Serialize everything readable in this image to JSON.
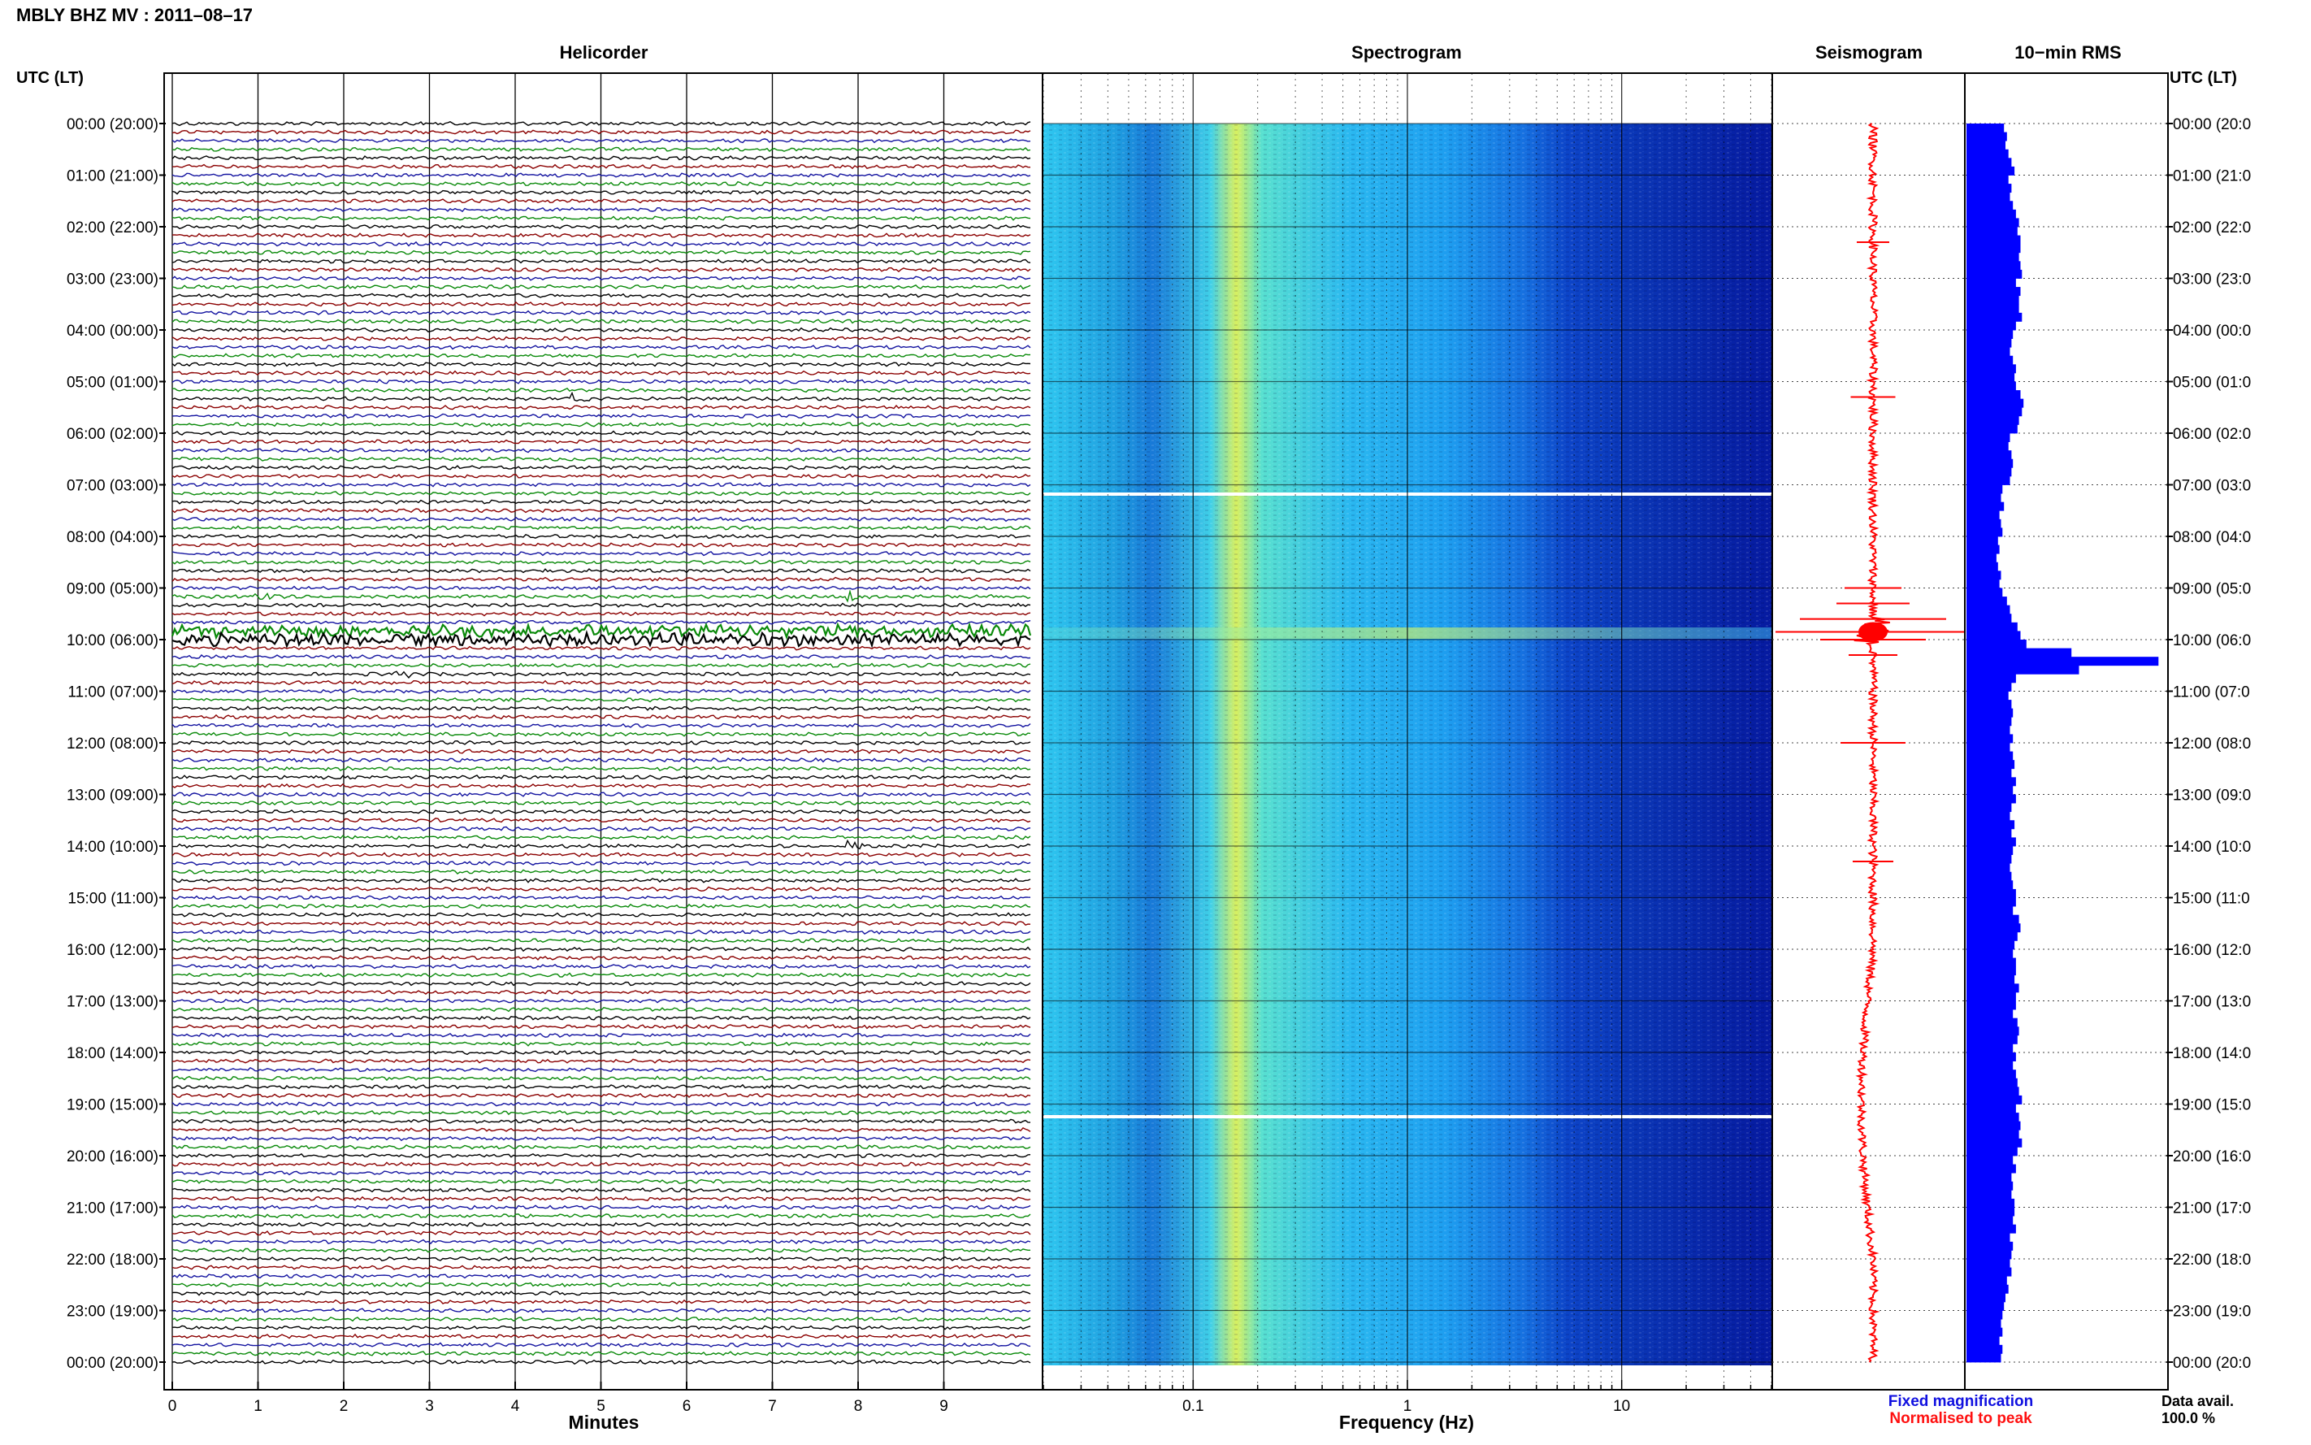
{
  "title": "MBLY BHZ MV : 2011–08–17",
  "left_axis_header": "UTC (LT)",
  "right_axis_header": "UTC (LT)",
  "panels": {
    "helicorder": "Helicorder",
    "spectrogram": "Spectrogram",
    "seismogram": "Seismogram",
    "rms": "10−min RMS"
  },
  "time_labels": [
    "00:00 (20:00)",
    "01:00 (21:00)",
    "02:00 (22:00)",
    "03:00 (23:00)",
    "04:00 (00:00)",
    "05:00 (01:00)",
    "06:00 (02:00)",
    "07:00 (03:00)",
    "08:00 (04:00)",
    "09:00 (05:00)",
    "10:00 (06:00)",
    "11:00 (07:00)",
    "12:00 (08:00)",
    "13:00 (09:00)",
    "14:00 (10:00)",
    "15:00 (11:00)",
    "16:00 (12:00)",
    "17:00 (13:00)",
    "18:00 (14:00)",
    "19:00 (15:00)",
    "20:00 (16:00)",
    "21:00 (17:00)",
    "22:00 (18:00)",
    "23:00 (19:00)",
    "00:00 (20:00)"
  ],
  "right_time_labels": [
    "00:00 (20:0",
    "01:00 (21:0",
    "02:00 (22:0",
    "03:00 (23:0",
    "04:00 (00:0",
    "05:00 (01:0",
    "06:00 (02:0",
    "07:00 (03:0",
    "08:00 (04:0",
    "09:00 (05:0",
    "10:00 (06:0",
    "11:00 (07:0",
    "12:00 (08:0",
    "13:00 (09:0",
    "14:00 (10:0",
    "15:00 (11:0",
    "16:00 (12:0",
    "17:00 (13:0",
    "18:00 (14:0",
    "19:00 (15:0",
    "20:00 (16:0",
    "21:00 (17:0",
    "22:00 (18:0",
    "23:00 (19:0",
    "00:00 (20:0"
  ],
  "helicorder_xlabel": "Minutes",
  "helicorder_ticks": [
    "0",
    "1",
    "2",
    "3",
    "4",
    "5",
    "6",
    "7",
    "8",
    "9"
  ],
  "spectrogram_xlabel": "Frequency (Hz)",
  "spectrogram_ticks": [
    "0.1",
    "1",
    "10"
  ],
  "legend": {
    "fixed": "Fixed magnification",
    "normalised": "Normalised to peak",
    "fixed_color": "#1010e0",
    "normalised_color": "#ff1010"
  },
  "data_avail_label": "Data avail.",
  "data_avail_value": "100.0 %",
  "colors": {
    "trace_cycle": [
      "#000000",
      "#8b0000",
      "#1414a0",
      "#0a8a0a"
    ],
    "seismogram": "#ff0000",
    "rms_bar": "#0000ff"
  },
  "chart_data": [
    {
      "type": "line",
      "name": "Helicorder",
      "xlabel": "Minutes",
      "xlim": [
        0,
        10
      ],
      "rows_per_hour": 6,
      "hours": 24,
      "notable_events": [
        {
          "time": "05:20",
          "minute": 4.7
        },
        {
          "time": "09:10",
          "minute": 1.0
        },
        {
          "time": "09:10",
          "minute": 7.9
        },
        {
          "time": "09:50",
          "minute": 0.0,
          "note": "large event, saturating"
        },
        {
          "time": "10:40",
          "minute": 2.6
        },
        {
          "time": "14:00",
          "minute": 7.9
        }
      ]
    },
    {
      "type": "heatmap",
      "name": "Spectrogram",
      "xlabel": "Frequency (Hz)",
      "xscale": "log",
      "xlim": [
        0.02,
        50
      ],
      "y": "time of day (UTC)",
      "features": [
        {
          "frequency_hz": 0.22,
          "note": "persistent microseism band"
        },
        {
          "time": "10:00",
          "note": "broadband energy to ~50 Hz"
        },
        {
          "time": "07:10",
          "note": "data gap"
        },
        {
          "time": "19:10",
          "note": "data gap"
        }
      ]
    },
    {
      "type": "line",
      "name": "Seismogram",
      "x": "amplitude (normalised)",
      "y": "time of day (UTC)"
    },
    {
      "type": "bar",
      "name": "10-min RMS",
      "orientation": "horizontal",
      "xlim": [
        0,
        130
      ],
      "bin_minutes": 10,
      "values": [
        25,
        27,
        26,
        28,
        30,
        32,
        28,
        30,
        29,
        31,
        33,
        35,
        34,
        36,
        36,
        35,
        36,
        37,
        33,
        36,
        35,
        35,
        37,
        33,
        31,
        30,
        29,
        31,
        33,
        32,
        33,
        36,
        38,
        37,
        35,
        34,
        29,
        28,
        30,
        31,
        30,
        29,
        24,
        23,
        25,
        22,
        23,
        24,
        21,
        22,
        20,
        21,
        23,
        22,
        24,
        27,
        29,
        30,
        34,
        36,
        40,
        70,
        128,
        75,
        33,
        30,
        28,
        30,
        31,
        30,
        29,
        31,
        29,
        31,
        32,
        30,
        33,
        31,
        33,
        30,
        29,
        32,
        30,
        33,
        31,
        30,
        29,
        30,
        31,
        33,
        33,
        31,
        35,
        36,
        34,
        32,
        31,
        33,
        33,
        32,
        35,
        33,
        33,
        31,
        34,
        35,
        34,
        31,
        33,
        31,
        33,
        34,
        35,
        37,
        33,
        35,
        36,
        35,
        37,
        34,
        31,
        33,
        30,
        31,
        30,
        32,
        32,
        31,
        33,
        29,
        31,
        30,
        29,
        30,
        27,
        28,
        26,
        25,
        24,
        23,
        24,
        22,
        24,
        23
      ]
    }
  ]
}
